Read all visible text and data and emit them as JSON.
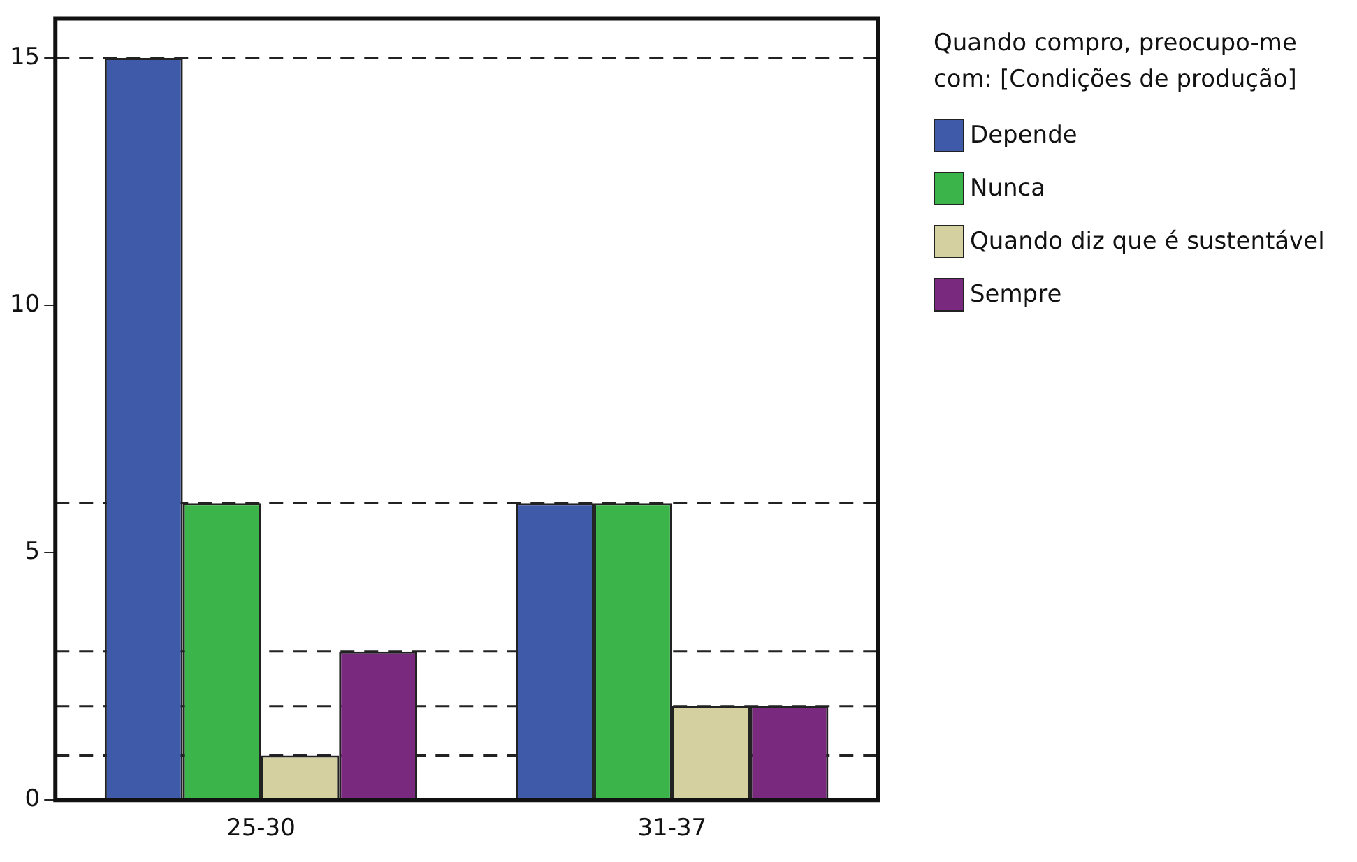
{
  "chart_data": {
    "type": "bar",
    "legend_title": "Quando compro, preocupo-me com: [Condições de produção]",
    "categories": [
      "25-30",
      "31-37"
    ],
    "series": [
      {
        "name": "Depende",
        "color": "#3f5aa8",
        "values": [
          15,
          6
        ]
      },
      {
        "name": "Nunca",
        "color": "#3bb54a",
        "values": [
          6,
          6
        ]
      },
      {
        "name": "Quando diz que é sustentável",
        "color": "#d4d0a0",
        "values": [
          0.9,
          1.9
        ]
      },
      {
        "name": "Sempre",
        "color": "#7a2a7e",
        "values": [
          3,
          1.9
        ]
      }
    ],
    "ylim": [
      0,
      15.8
    ],
    "yticks": [
      0,
      5,
      10,
      15
    ],
    "grid": false,
    "legend": "right",
    "ref_lines": [
      {
        "axis": "y",
        "value": 15,
        "line_style": "dashed"
      },
      {
        "axis": "y",
        "value": 6,
        "line_style": "dashed"
      },
      {
        "axis": "y",
        "value": 3,
        "line_style": "dashed"
      },
      {
        "axis": "y",
        "value": 1.9,
        "line_style": "dashed"
      },
      {
        "axis": "y",
        "value": 0.9,
        "line_style": "dashed"
      }
    ]
  }
}
